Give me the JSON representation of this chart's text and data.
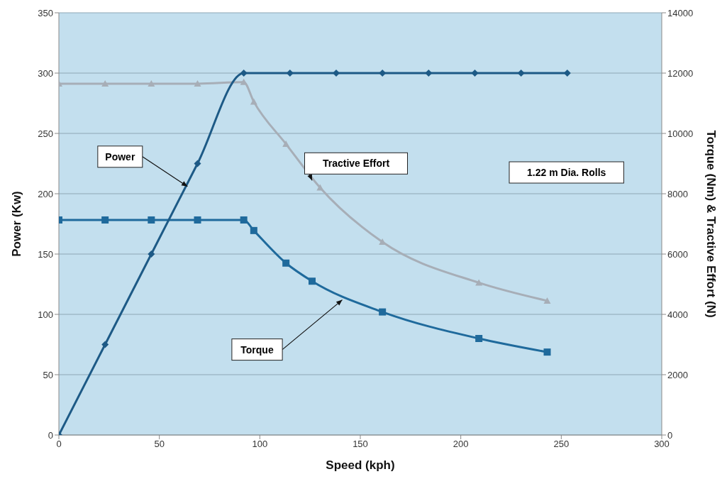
{
  "chart_data": {
    "type": "line",
    "xlabel": "Speed (kph)",
    "ylabel": "Power (Kw)",
    "y2label": "Torque (Nm) & Tractive Effort (N)",
    "xlim": [
      0,
      300
    ],
    "xticks": [
      0,
      50,
      100,
      150,
      200,
      250,
      300
    ],
    "ylim": [
      0,
      350
    ],
    "yticks": [
      0,
      50,
      100,
      150,
      200,
      250,
      300,
      350
    ],
    "y2lim": [
      0,
      14000
    ],
    "y2ticks": [
      0,
      2000,
      4000,
      6000,
      8000,
      10000,
      12000,
      14000
    ],
    "grid": "y",
    "series": [
      {
        "color": "#a7aeb7",
        "marker": "triangle",
        "axis": "y2",
        "x": [
          0,
          23,
          46,
          69,
          92,
          97,
          113,
          130,
          161,
          209,
          243
        ],
        "values": [
          11650,
          11650,
          11650,
          11650,
          11700,
          11050,
          9650,
          8200,
          6400,
          5050,
          4450
        ]
      },
      {
        "color": "#1f6a9c",
        "marker": "square",
        "axis": "y2",
        "x": [
          0,
          23,
          46,
          69,
          92,
          97,
          113,
          126,
          161,
          209,
          243
        ],
        "values": [
          7130,
          7130,
          7130,
          7130,
          7130,
          6780,
          5700,
          5100,
          4080,
          3200,
          2750
        ]
      },
      {
        "color": "#1d5a86",
        "marker": "diamond",
        "x": [
          0,
          23,
          46,
          69,
          92,
          115,
          138,
          161,
          184,
          207,
          230,
          253
        ],
        "values": [
          0,
          75,
          150,
          225,
          300,
          300,
          300,
          300,
          300,
          300,
          300,
          300
        ]
      }
    ],
    "annotations": [
      {
        "text": "Power",
        "x": 64,
        "y": 206
      },
      {
        "text": "Tractive Effort",
        "x": 126,
        "y": 211
      },
      {
        "text": "Torque",
        "x": 141,
        "y": 112
      },
      "1.22 m Dia. Rolls"
    ]
  }
}
